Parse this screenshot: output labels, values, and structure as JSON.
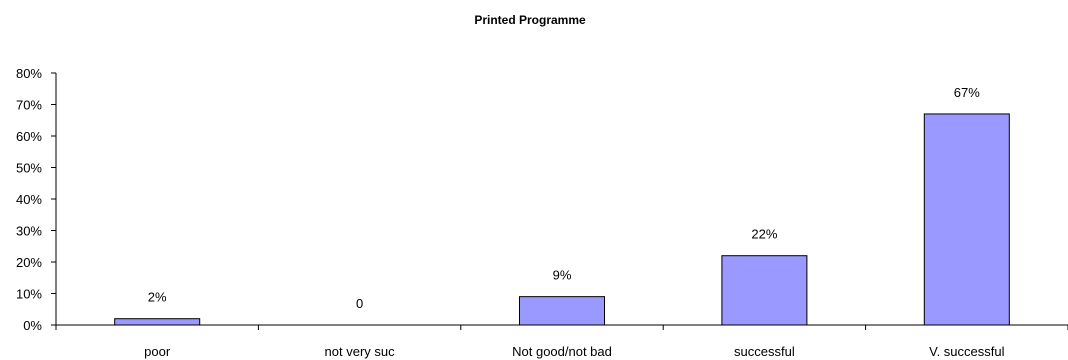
{
  "chart_data": {
    "type": "bar",
    "title": "Printed Programme",
    "categories": [
      "poor",
      "not very suc",
      "Not good/not bad",
      "successful",
      "V. successful"
    ],
    "values": [
      2,
      0,
      9,
      22,
      67
    ],
    "data_labels": [
      "2%",
      "0",
      "9%",
      "22%",
      "67%"
    ],
    "yticks": [
      "0%",
      "10%",
      "20%",
      "30%",
      "40%",
      "50%",
      "60%",
      "70%",
      "80%"
    ],
    "ylim": [
      0,
      80
    ],
    "bar_color": "#9999ff",
    "bar_stroke": "#000000",
    "grid": false,
    "legend": "none"
  }
}
